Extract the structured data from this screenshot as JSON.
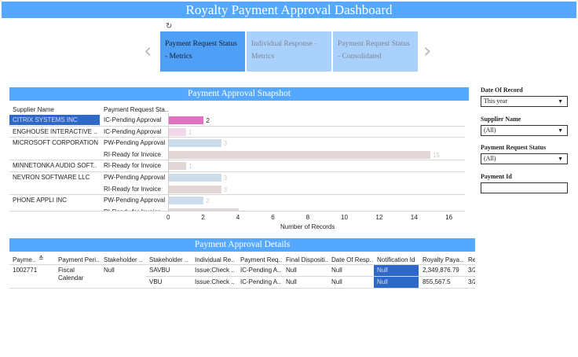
{
  "title": "Royalty Payment Approval Dashboard",
  "tabs": [
    {
      "label": "Payment Request Status - Metrics",
      "active": true
    },
    {
      "label": "Individual Response - Metrics",
      "active": false
    },
    {
      "label": "Payment Request Status - Consolidated",
      "active": false
    }
  ],
  "snapshot": {
    "title": "Payment Approval Snapshot",
    "col_supplier": "Supplier Name",
    "col_status": "Payment Request Sta..",
    "rows": [
      {
        "supplier": "CITRIX SYSTEMS INC",
        "status": "IC-Pending Approval",
        "value": 2,
        "selected": true
      },
      {
        "supplier": "ENGHOUSE INTERACTIVE ..",
        "status": "IC-Pending Approval",
        "value": 1
      },
      {
        "supplier": "MICROSOFT CORPORATION",
        "status": "PW-Pending Approval",
        "value": 3
      },
      {
        "supplier": "",
        "status": "RI-Ready for Invoice",
        "value": 15
      },
      {
        "supplier": "MINNETONKA AUDIO SOFT..",
        "status": "RI-Ready for Invoice",
        "value": 1
      },
      {
        "supplier": "NEVRON SOFTWARE LLC",
        "status": "PW-Pending Approval",
        "value": 3
      },
      {
        "supplier": "",
        "status": "RI-Ready for Invoice",
        "value": 3
      },
      {
        "supplier": "PHONE APPLI INC",
        "status": "PW-Pending Approval",
        "value": 2
      },
      {
        "supplier": "",
        "status": "RI-Ready for Invoice",
        "value": 4
      }
    ],
    "xlabel": "Number of Records",
    "ticks": [
      "0",
      "2",
      "4",
      "6",
      "8",
      "10",
      "12",
      "14",
      "16"
    ],
    "colors": {
      "IC": "#e070c0",
      "IC_faded": "#f3d8ea",
      "PW": "#cddcea",
      "RI": "#e2d6d6"
    }
  },
  "filters": [
    {
      "label": "Date Of Record",
      "value": "This year",
      "type": "dropdown"
    },
    {
      "label": "Supplier Name",
      "value": "(All)",
      "type": "dropdown"
    },
    {
      "label": "Payment Request Status",
      "value": "(All)",
      "type": "dropdown"
    },
    {
      "label": "Payment Id",
      "value": "",
      "type": "text"
    }
  ],
  "details": {
    "title": "Payment Approval Details",
    "headers": [
      "Payme..",
      "Payment Peri..",
      "Stakeholder ..",
      "Stakeholder ..",
      "Individual Re..",
      "Payment Req..",
      "Final Dispositi..",
      "Date Of Resp..",
      "Notification Id",
      "Royalty Paya..",
      "Re"
    ],
    "payment_id": "1002771",
    "period": "Fiscal Calendar",
    "stakeholder": "Null",
    "rows": [
      [
        "SAVBU",
        "Issue:Check ..",
        "IC-Pending A..",
        "Null",
        "Null",
        "Null",
        "2,349,876.79",
        "3/2"
      ],
      [
        "VBU",
        "Issue:Check ..",
        "IC-Pending A..",
        "Null",
        "Null",
        "Null",
        "855,567.5",
        "3/2"
      ]
    ]
  }
}
